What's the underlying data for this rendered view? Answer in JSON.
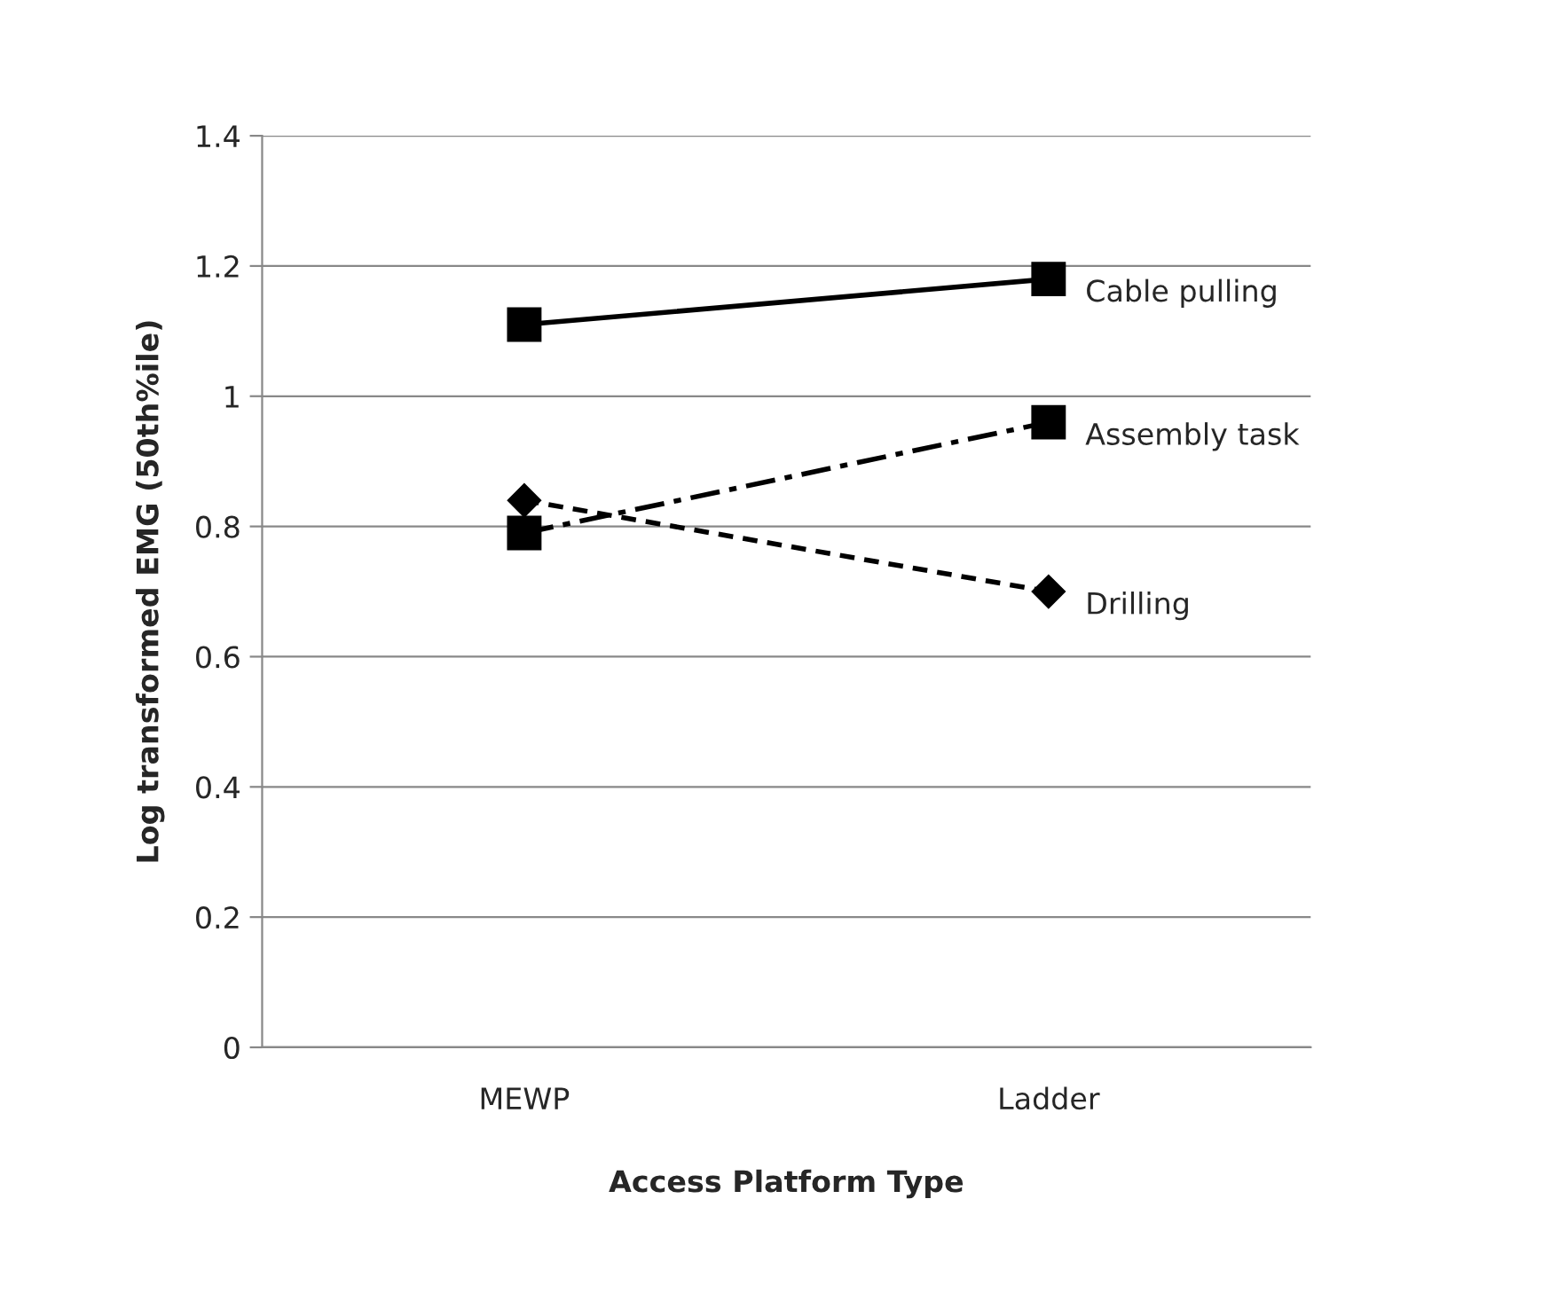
{
  "chart_data": {
    "type": "line",
    "xlabel": "Access Platform Type",
    "ylabel": "Log transformed EMG (50th%ile)",
    "categories": [
      "MEWP",
      "Ladder"
    ],
    "series": [
      {
        "name": "Cable pulling",
        "color": "#000000",
        "values": [
          1.11,
          1.18
        ],
        "marker": "square",
        "line_style": "solid"
      },
      {
        "name": "Assembly task",
        "color": "#000000",
        "values": [
          0.79,
          0.96
        ],
        "marker": "square",
        "line_style": "dashdot"
      },
      {
        "name": "Drilling",
        "color": "#000000",
        "values": [
          0.84,
          0.7
        ],
        "marker": "diamond",
        "line_style": "dashed"
      }
    ],
    "ylim": [
      0,
      1.4
    ],
    "yticks": [
      0,
      0.2,
      0.4,
      0.6,
      0.8,
      1,
      1.2,
      1.4
    ],
    "grid": "y",
    "legend": false
  }
}
